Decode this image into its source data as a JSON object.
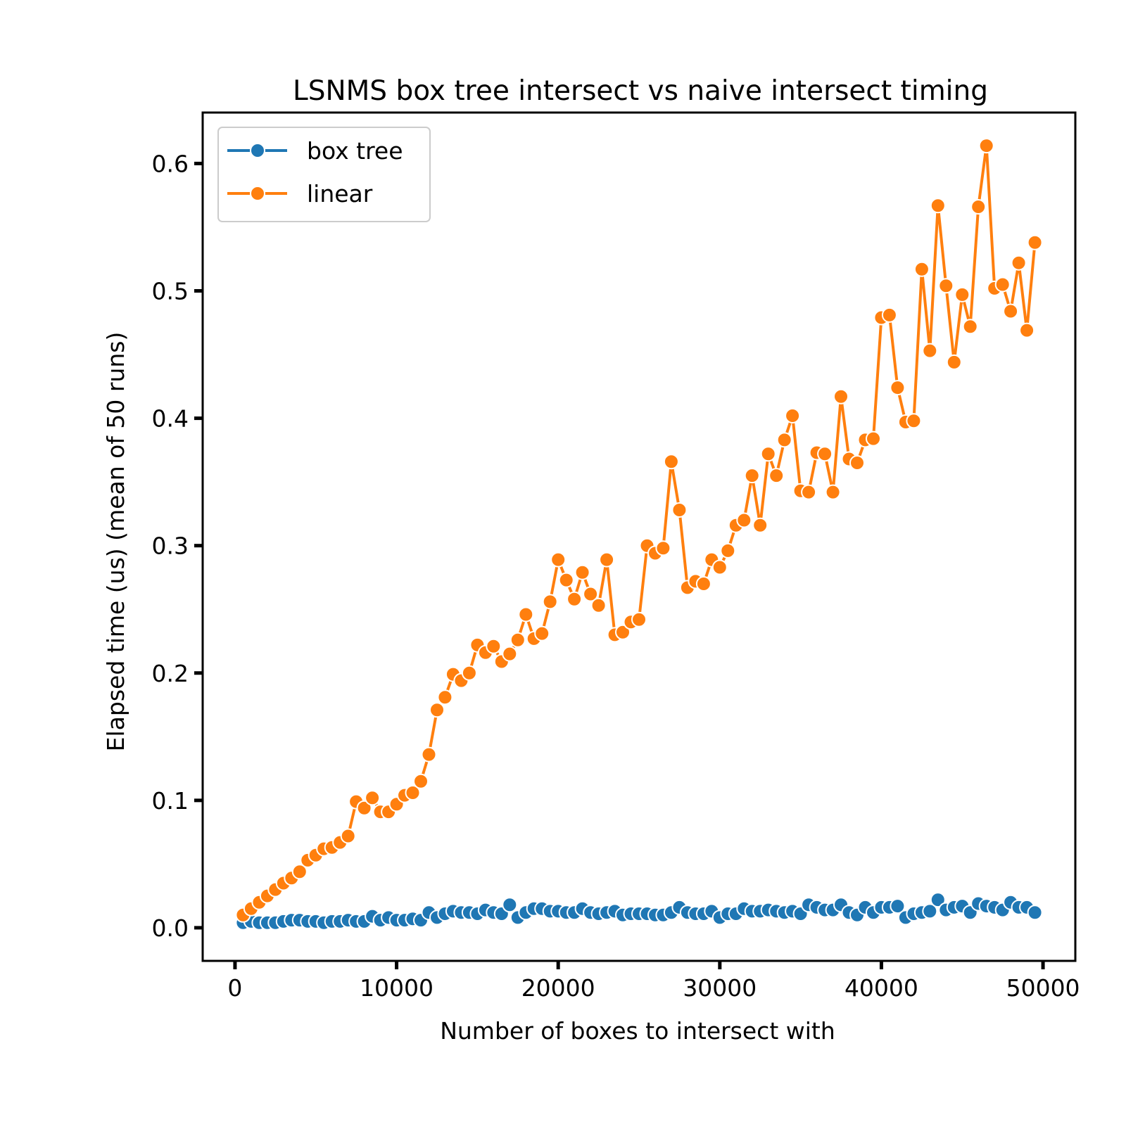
{
  "chart_data": {
    "type": "line",
    "title": "LSNMS box tree intersect vs naive intersect timing",
    "xlabel": "Number of boxes to intersect with",
    "ylabel": "Elapsed time (us) (mean of 50 runs)",
    "xlim": [
      -2000,
      52000
    ],
    "ylim": [
      -0.026,
      0.64
    ],
    "xticks": [
      0,
      10000,
      20000,
      30000,
      40000,
      50000
    ],
    "xtick_labels": [
      "0",
      "10000",
      "20000",
      "30000",
      "40000",
      "50000"
    ],
    "yticks": [
      0.0,
      0.1,
      0.2,
      0.3,
      0.4,
      0.5,
      0.6
    ],
    "ytick_labels": [
      "0.0",
      "0.1",
      "0.2",
      "0.3",
      "0.4",
      "0.5",
      "0.6"
    ],
    "grid": false,
    "legend_position": "top-left",
    "x": [
      500,
      1000,
      1500,
      2000,
      2500,
      3000,
      3500,
      4000,
      4500,
      5000,
      5500,
      6000,
      6500,
      7000,
      7500,
      8000,
      8500,
      9000,
      9500,
      10000,
      10500,
      11000,
      11500,
      12000,
      12500,
      13000,
      13500,
      14000,
      14500,
      15000,
      15500,
      16000,
      16500,
      17000,
      17500,
      18000,
      18500,
      19000,
      19500,
      20000,
      20500,
      21000,
      21500,
      22000,
      22500,
      23000,
      23500,
      24000,
      24500,
      25000,
      25500,
      26000,
      26500,
      27000,
      27500,
      28000,
      28500,
      29000,
      29500,
      30000,
      30500,
      31000,
      31500,
      32000,
      32500,
      33000,
      33500,
      34000,
      34500,
      35000,
      35500,
      36000,
      36500,
      37000,
      37500,
      38000,
      38500,
      39000,
      39500,
      40000,
      40500,
      41000,
      41500,
      42000,
      42500,
      43000,
      43500,
      44000,
      44500,
      45000,
      45500,
      46000,
      46500,
      47000,
      47500,
      48000,
      48500,
      49000,
      49500
    ],
    "series": [
      {
        "name": "box tree",
        "color": "#1f77b4",
        "values": [
          0.004,
          0.005,
          0.004,
          0.004,
          0.004,
          0.005,
          0.006,
          0.006,
          0.005,
          0.005,
          0.004,
          0.005,
          0.005,
          0.006,
          0.005,
          0.005,
          0.009,
          0.006,
          0.008,
          0.006,
          0.006,
          0.007,
          0.006,
          0.012,
          0.008,
          0.011,
          0.013,
          0.012,
          0.012,
          0.011,
          0.014,
          0.012,
          0.011,
          0.018,
          0.008,
          0.012,
          0.015,
          0.015,
          0.013,
          0.013,
          0.012,
          0.012,
          0.015,
          0.012,
          0.011,
          0.012,
          0.013,
          0.01,
          0.011,
          0.011,
          0.011,
          0.01,
          0.01,
          0.012,
          0.016,
          0.012,
          0.011,
          0.011,
          0.013,
          0.008,
          0.011,
          0.011,
          0.015,
          0.013,
          0.013,
          0.014,
          0.013,
          0.012,
          0.013,
          0.011,
          0.018,
          0.016,
          0.014,
          0.014,
          0.018,
          0.012,
          0.01,
          0.016,
          0.012,
          0.016,
          0.016,
          0.017,
          0.008,
          0.011,
          0.012,
          0.013,
          0.022,
          0.014,
          0.016,
          0.017,
          0.012,
          0.019,
          0.017,
          0.016,
          0.014,
          0.02,
          0.016,
          0.016,
          0.012
        ]
      },
      {
        "name": "linear",
        "color": "#ff7f0e",
        "values": [
          0.01,
          0.015,
          0.02,
          0.025,
          0.03,
          0.035,
          0.039,
          0.044,
          0.053,
          0.057,
          0.062,
          0.063,
          0.067,
          0.072,
          0.099,
          0.094,
          0.102,
          0.091,
          0.091,
          0.097,
          0.104,
          0.106,
          0.115,
          0.136,
          0.171,
          0.181,
          0.199,
          0.194,
          0.2,
          0.222,
          0.216,
          0.221,
          0.209,
          0.215,
          0.226,
          0.246,
          0.227,
          0.231,
          0.256,
          0.289,
          0.273,
          0.258,
          0.279,
          0.262,
          0.253,
          0.289,
          0.23,
          0.232,
          0.24,
          0.242,
          0.3,
          0.294,
          0.298,
          0.366,
          0.328,
          0.267,
          0.272,
          0.27,
          0.289,
          0.283,
          0.296,
          0.316,
          0.32,
          0.355,
          0.316,
          0.372,
          0.355,
          0.383,
          0.402,
          0.343,
          0.342,
          0.373,
          0.372,
          0.342,
          0.417,
          0.368,
          0.365,
          0.383,
          0.384,
          0.479,
          0.481,
          0.424,
          0.397,
          0.398,
          0.517,
          0.453,
          0.567,
          0.504,
          0.444,
          0.497,
          0.472,
          0.566,
          0.614,
          0.502,
          0.505,
          0.484,
          0.522,
          0.469,
          0.538
        ]
      }
    ]
  }
}
